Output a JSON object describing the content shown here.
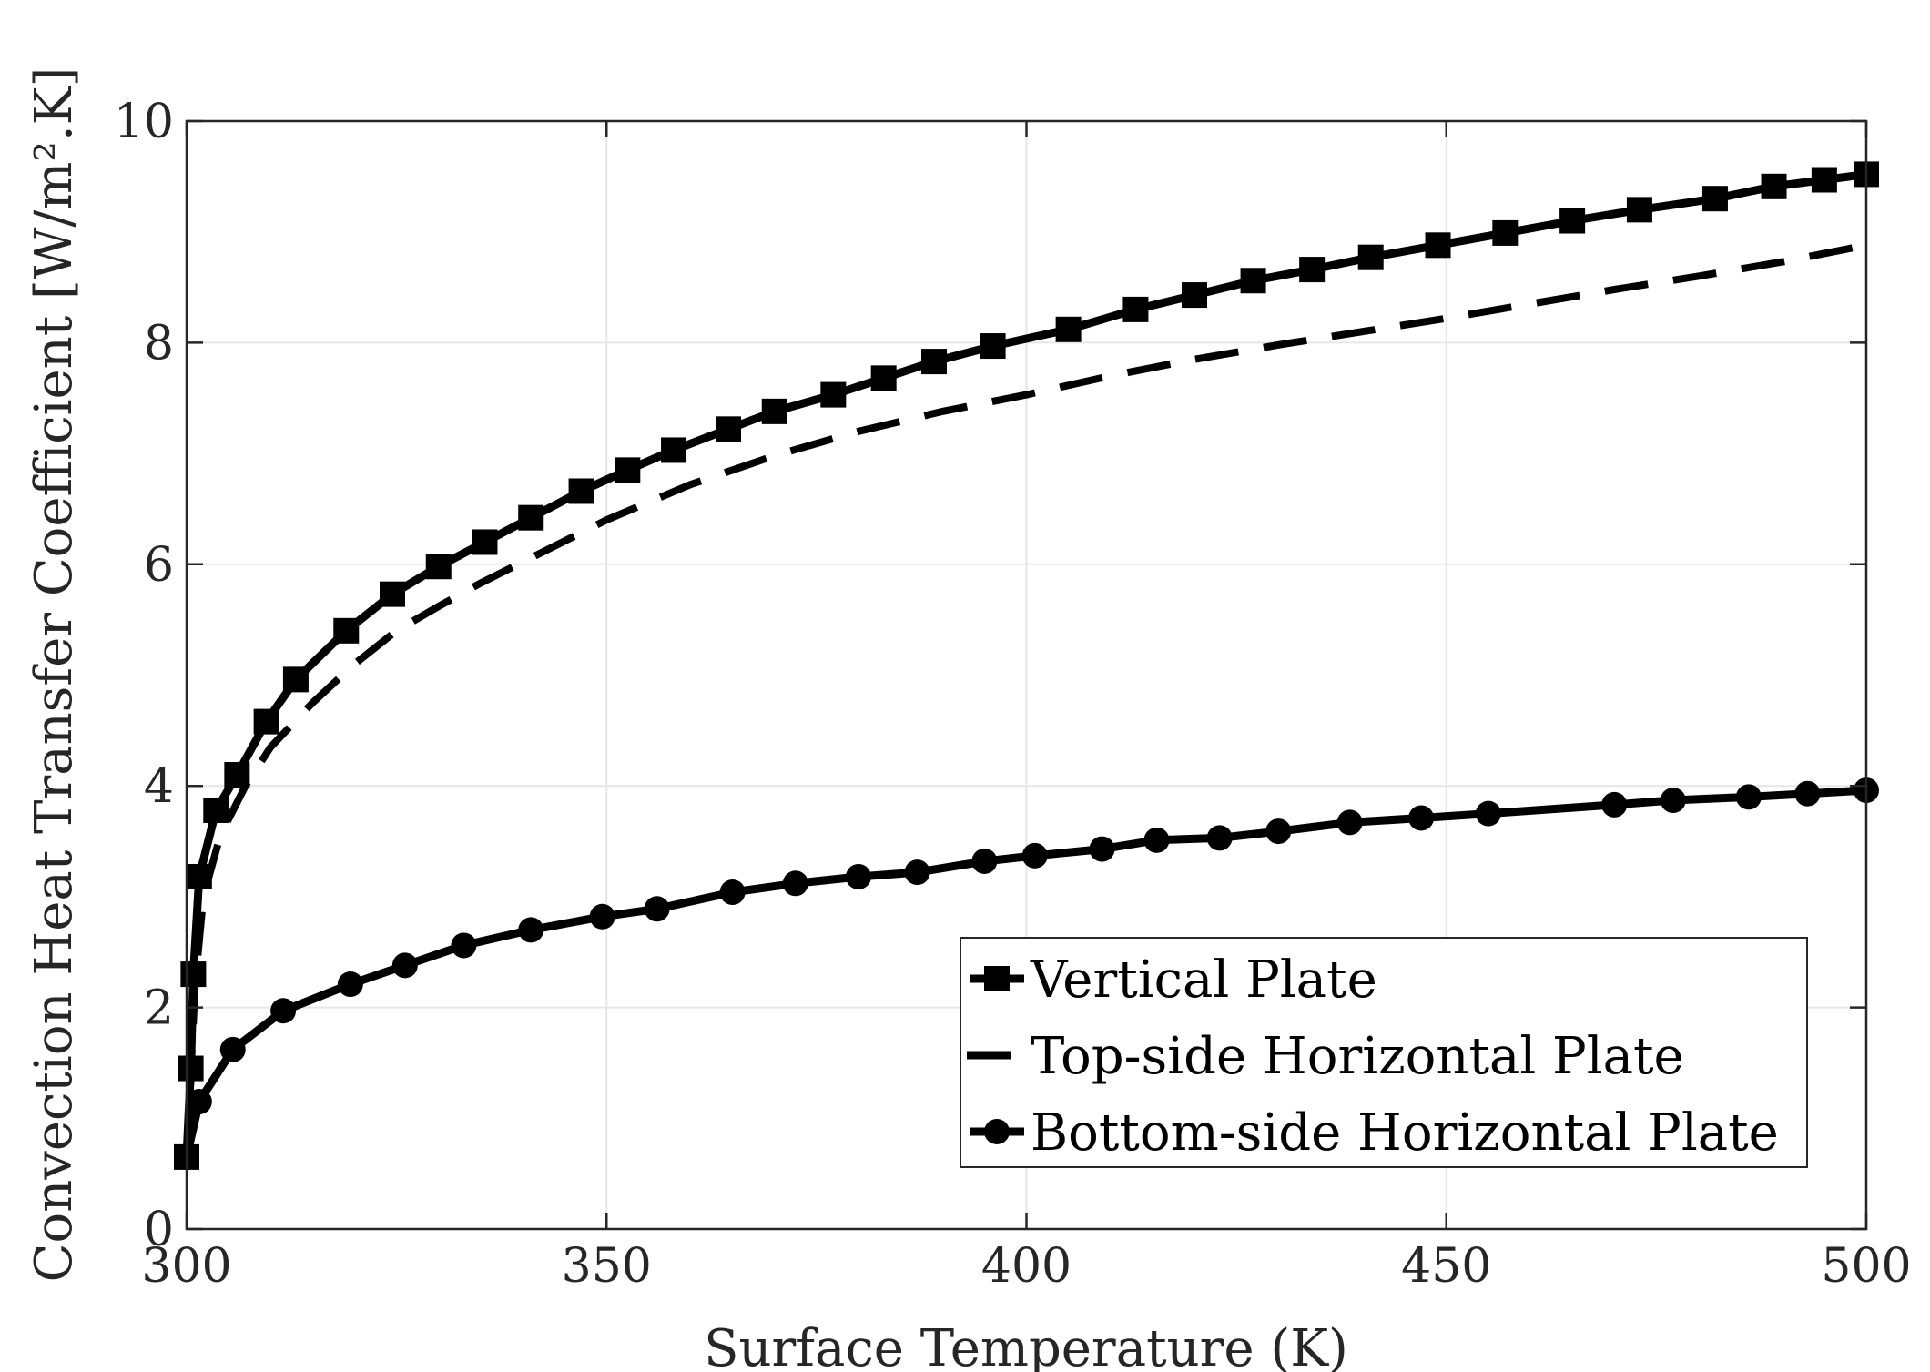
{
  "chart_data": {
    "type": "line",
    "xlabel": "Surface Temperature (K)",
    "ylabel": "Convection Heat Transfer Coefficient [W/m².K]",
    "xlim": [
      300,
      500
    ],
    "ylim": [
      0,
      10
    ],
    "xticks": [
      "300",
      "350",
      "400",
      "450",
      "500"
    ],
    "yticks": [
      "0",
      "2",
      "4",
      "6",
      "8",
      "10"
    ],
    "grid": true,
    "legend_position": "bottom-right",
    "series": [
      {
        "name": "Vertical Plate",
        "style": "solid",
        "marker": "square",
        "color": "#000000",
        "x": [
          300,
          300.5,
          300.8,
          301.5,
          303.5,
          306,
          309.5,
          313,
          319,
          324.5,
          330,
          335.5,
          341,
          347,
          352.5,
          358,
          364.5,
          370,
          377,
          383,
          389,
          396,
          405,
          413,
          420,
          427,
          434,
          441,
          449,
          457,
          465,
          473,
          482,
          489,
          495,
          500
        ],
        "y": [
          0.65,
          1.45,
          2.3,
          3.18,
          3.78,
          4.1,
          4.58,
          4.96,
          5.4,
          5.73,
          5.98,
          6.2,
          6.42,
          6.66,
          6.85,
          7.03,
          7.22,
          7.38,
          7.53,
          7.68,
          7.83,
          7.97,
          8.12,
          8.3,
          8.43,
          8.56,
          8.66,
          8.77,
          8.88,
          8.99,
          9.1,
          9.2,
          9.3,
          9.41,
          9.47,
          9.52
        ]
      },
      {
        "name": "Top-side Horizontal Plate",
        "style": "dashed",
        "marker": "none",
        "color": "#000000",
        "x": [
          300,
          300.5,
          301,
          302,
          304,
          307,
          310,
          315,
          320,
          325,
          330,
          335,
          340,
          350,
          360,
          370,
          380,
          390,
          400,
          410,
          420,
          430,
          440,
          450,
          460,
          470,
          480,
          490,
          500
        ],
        "y": [
          0.6,
          1.4,
          2.2,
          3.0,
          3.55,
          4.0,
          4.35,
          4.75,
          5.1,
          5.4,
          5.62,
          5.83,
          6.02,
          6.4,
          6.72,
          6.98,
          7.2,
          7.38,
          7.53,
          7.7,
          7.85,
          7.98,
          8.1,
          8.22,
          8.35,
          8.48,
          8.6,
          8.73,
          8.88
        ]
      },
      {
        "name": "Bottom-side Horizontal Plate",
        "style": "solid",
        "marker": "circle",
        "color": "#000000",
        "x": [
          300,
          301.5,
          305.5,
          311.5,
          319.5,
          326,
          333,
          341,
          349.5,
          356,
          365,
          372.5,
          380,
          387,
          395,
          401,
          409,
          415.5,
          423,
          430,
          438.5,
          447,
          455,
          470,
          477,
          486,
          493,
          500
        ],
        "y": [
          0.65,
          1.15,
          1.62,
          1.97,
          2.21,
          2.38,
          2.56,
          2.7,
          2.82,
          2.89,
          3.04,
          3.12,
          3.18,
          3.22,
          3.32,
          3.37,
          3.43,
          3.51,
          3.53,
          3.59,
          3.67,
          3.71,
          3.75,
          3.83,
          3.87,
          3.9,
          3.93,
          3.96
        ]
      }
    ]
  }
}
